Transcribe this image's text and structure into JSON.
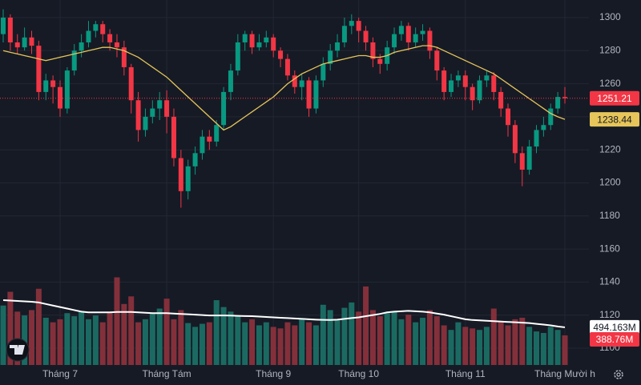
{
  "chart_data": {
    "type": "candlestick",
    "categories": [
      null,
      null,
      null,
      null,
      null,
      null,
      null,
      null,
      "Tháng 7",
      null,
      null,
      null,
      null,
      null,
      null,
      null,
      null,
      null,
      null,
      null,
      null,
      null,
      null,
      "Tháng Tám",
      null,
      null,
      null,
      null,
      null,
      null,
      null,
      null,
      null,
      null,
      null,
      null,
      null,
      null,
      "Tháng 9",
      null,
      null,
      null,
      null,
      null,
      null,
      null,
      null,
      null,
      null,
      null,
      "Tháng 10",
      null,
      null,
      null,
      null,
      null,
      null,
      null,
      null,
      null,
      null,
      null,
      null,
      null,
      null,
      "Tháng 11",
      null,
      null,
      null,
      null,
      null,
      null,
      null,
      null,
      null,
      null,
      null,
      null,
      null,
      "Tháng Mười h"
    ],
    "open": [
      1290,
      1300,
      1285,
      1282,
      1288,
      1283,
      1255,
      1262,
      1258,
      1245,
      1268,
      1280,
      1285,
      1292,
      1296,
      1290,
      1285,
      1282,
      1270,
      1250,
      1232,
      1240,
      1245,
      1250,
      1240,
      1215,
      1195,
      1210,
      1218,
      1228,
      1225,
      1235,
      1255,
      1268,
      1285,
      1290,
      1282,
      1285,
      1288,
      1280,
      1275,
      1265,
      1258,
      1262,
      1245,
      1262,
      1272,
      1280,
      1285,
      1295,
      1298,
      1292,
      1285,
      1275,
      1272,
      1282,
      1290,
      1295,
      1285,
      1290,
      1292,
      1280,
      1268,
      1255,
      1262,
      1265,
      1258,
      1250,
      1262,
      1265,
      1255,
      1245,
      1235,
      1218,
      1208,
      1222,
      1232,
      1235,
      1245,
      1252
    ],
    "high": [
      1305,
      1302,
      1290,
      1294,
      1292,
      1286,
      1266,
      1265,
      1262,
      1270,
      1284,
      1290,
      1298,
      1298,
      1298,
      1293,
      1290,
      1286,
      1272,
      1255,
      1245,
      1250,
      1255,
      1256,
      1245,
      1220,
      1214,
      1222,
      1232,
      1232,
      1238,
      1258,
      1272,
      1290,
      1292,
      1292,
      1290,
      1292,
      1290,
      1282,
      1278,
      1268,
      1266,
      1264,
      1265,
      1276,
      1284,
      1290,
      1300,
      1302,
      1300,
      1295,
      1288,
      1278,
      1286,
      1294,
      1298,
      1297,
      1294,
      1296,
      1294,
      1282,
      1270,
      1266,
      1268,
      1268,
      1260,
      1265,
      1268,
      1267,
      1258,
      1248,
      1238,
      1222,
      1226,
      1235,
      1240,
      1248,
      1255,
      1258
    ],
    "low": [
      1285,
      1280,
      1278,
      1280,
      1278,
      1250,
      1250,
      1248,
      1240,
      1242,
      1265,
      1276,
      1282,
      1288,
      1285,
      1280,
      1276,
      1265,
      1242,
      1225,
      1228,
      1236,
      1238,
      1230,
      1210,
      1185,
      1190,
      1205,
      1214,
      1220,
      1222,
      1232,
      1250,
      1265,
      1280,
      1278,
      1280,
      1282,
      1276,
      1270,
      1262,
      1254,
      1250,
      1240,
      1242,
      1258,
      1268,
      1276,
      1282,
      1290,
      1285,
      1280,
      1270,
      1266,
      1268,
      1278,
      1286,
      1280,
      1282,
      1286,
      1275,
      1262,
      1250,
      1252,
      1258,
      1250,
      1244,
      1248,
      1258,
      1250,
      1240,
      1228,
      1212,
      1198,
      1205,
      1218,
      1228,
      1232,
      1242,
      1248
    ],
    "close": [
      1300,
      1285,
      1282,
      1288,
      1283,
      1255,
      1262,
      1258,
      1245,
      1268,
      1280,
      1285,
      1292,
      1296,
      1290,
      1285,
      1282,
      1270,
      1250,
      1232,
      1240,
      1245,
      1250,
      1240,
      1215,
      1195,
      1210,
      1218,
      1228,
      1225,
      1235,
      1255,
      1268,
      1285,
      1290,
      1282,
      1285,
      1288,
      1280,
      1275,
      1265,
      1258,
      1262,
      1245,
      1262,
      1272,
      1280,
      1285,
      1295,
      1298,
      1292,
      1285,
      1275,
      1272,
      1282,
      1290,
      1295,
      1285,
      1290,
      1292,
      1280,
      1268,
      1255,
      1262,
      1265,
      1258,
      1250,
      1262,
      1265,
      1255,
      1245,
      1235,
      1218,
      1208,
      1222,
      1232,
      1235,
      1245,
      1252,
      1251.21
    ],
    "ma": [
      1280,
      1279,
      1278,
      1277,
      1276,
      1275,
      1274,
      1275,
      1276,
      1277,
      1278,
      1279,
      1280,
      1281,
      1282,
      1282,
      1281,
      1280,
      1278,
      1276,
      1273,
      1270,
      1267,
      1264,
      1260,
      1256,
      1252,
      1248,
      1244,
      1240,
      1236,
      1232,
      1234,
      1237,
      1240,
      1243,
      1246,
      1249,
      1252,
      1256,
      1260,
      1263,
      1266,
      1268,
      1270,
      1272,
      1273,
      1274,
      1275,
      1276,
      1277,
      1277,
      1276,
      1276,
      1277,
      1279,
      1280,
      1281,
      1282,
      1283,
      1283,
      1282,
      1280,
      1278,
      1276,
      1274,
      1272,
      1270,
      1268,
      1266,
      1263,
      1260,
      1257,
      1254,
      1251,
      1248,
      1245,
      1242,
      1240,
      1238.44
    ],
    "volume": {
      "values": [
        780,
        960,
        700,
        650,
        720,
        1000,
        620,
        560,
        600,
        680,
        640,
        700,
        600,
        650,
        560,
        700,
        1150,
        800,
        900,
        560,
        600,
        680,
        740,
        870,
        600,
        720,
        550,
        500,
        540,
        560,
        850,
        760,
        700,
        640,
        560,
        600,
        520,
        560,
        500,
        480,
        560,
        520,
        600,
        560,
        520,
        790,
        720,
        600,
        750,
        820,
        700,
        1030,
        720,
        640,
        680,
        700,
        600,
        660,
        560,
        620,
        720,
        640,
        520,
        460,
        560,
        500,
        480,
        460,
        500,
        740,
        560,
        520,
        600,
        620,
        500,
        440,
        420,
        500,
        460,
        388.76
      ],
      "value_labels": [
        null,
        null,
        null,
        null,
        null,
        null,
        null,
        null,
        null,
        null,
        null,
        null,
        null,
        null,
        null,
        null,
        null,
        null,
        null,
        null,
        null,
        null,
        null,
        null,
        null,
        null,
        null,
        null,
        null,
        null,
        null,
        null,
        null,
        null,
        null,
        null,
        null,
        null,
        null,
        null,
        null,
        null,
        null,
        null,
        null,
        null,
        null,
        null,
        null,
        null,
        null,
        null,
        null,
        null,
        null,
        null,
        null,
        null,
        null,
        null,
        null,
        null,
        null,
        null,
        null,
        null,
        null,
        null,
        null,
        null,
        null,
        null,
        null,
        null,
        null,
        null,
        null,
        null,
        null,
        "388.76M"
      ],
      "ylim": [
        0,
        4788
      ]
    },
    "volume_ma": {
      "values": [
        850,
        845,
        840,
        835,
        830,
        820,
        800,
        780,
        760,
        740,
        720,
        700,
        690,
        690,
        690,
        690,
        695,
        695,
        695,
        690,
        685,
        680,
        680,
        680,
        675,
        670,
        665,
        660,
        655,
        650,
        650,
        650,
        648,
        645,
        642,
        640,
        635,
        630,
        625,
        620,
        615,
        610,
        605,
        600,
        595,
        592,
        590,
        595,
        605,
        615,
        625,
        640,
        655,
        670,
        690,
        700,
        705,
        710,
        705,
        700,
        690,
        675,
        660,
        640,
        620,
        600,
        590,
        585,
        580,
        575,
        570,
        565,
        560,
        555,
        550,
        540,
        530,
        520,
        505,
        494.163
      ],
      "value_labels": [
        null,
        null,
        null,
        null,
        null,
        null,
        null,
        null,
        null,
        null,
        null,
        null,
        null,
        null,
        null,
        null,
        null,
        null,
        null,
        null,
        null,
        null,
        null,
        null,
        null,
        null,
        null,
        null,
        null,
        null,
        null,
        null,
        null,
        null,
        null,
        null,
        null,
        null,
        null,
        null,
        null,
        null,
        null,
        null,
        null,
        null,
        null,
        null,
        null,
        null,
        null,
        null,
        null,
        null,
        null,
        null,
        null,
        null,
        null,
        null,
        null,
        null,
        null,
        null,
        null,
        null,
        null,
        null,
        null,
        null,
        null,
        null,
        null,
        null,
        null,
        null,
        null,
        null,
        null,
        "494.163M"
      ]
    },
    "ylim": [
      1089.83,
      1310.65
    ],
    "yticks": [
      1100,
      1120,
      1140,
      1160,
      1180,
      1200,
      1220,
      1240,
      1260,
      1280,
      1300
    ],
    "grid": true,
    "colors": {
      "up": "#089981",
      "down": "#f23645",
      "volume_up": "#1b6a62",
      "volume_down": "#83303b",
      "ma": "#e6c55a",
      "volume_ma": "#ffffff"
    }
  }
}
